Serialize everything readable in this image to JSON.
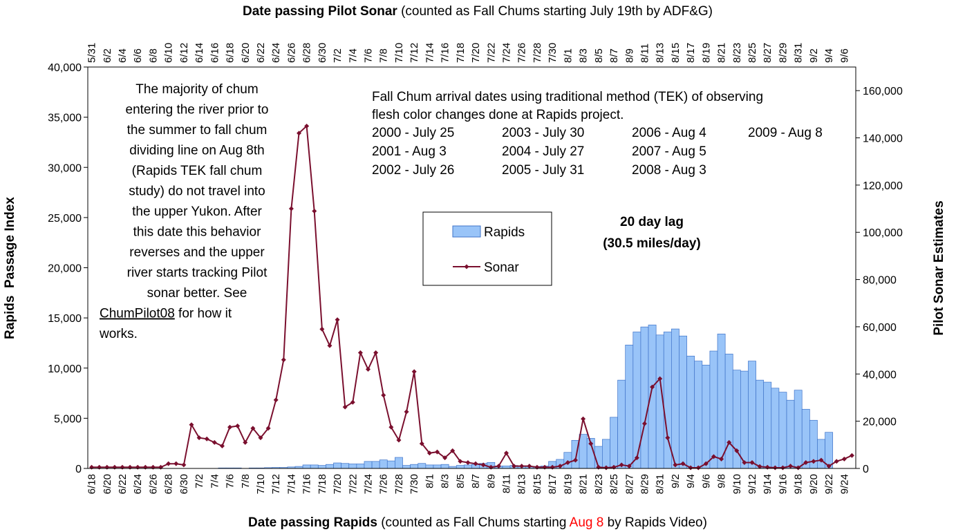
{
  "chart_data": {
    "type": "bar-line",
    "top_title": [
      {
        "text": "Date passing Pilot Sonar",
        "bold": true
      },
      {
        "text": " (counted as Fall Chums starting July 19th by ADF&G)"
      }
    ],
    "bottom_title": [
      {
        "text": "Date passing Rapids",
        "bold": true
      },
      {
        "text": " (counted as Fall Chums starting "
      },
      {
        "text": "Aug 8",
        "color": "#ff0000"
      },
      {
        "text": " by Rapids Video)"
      }
    ],
    "ylabel": "Rapids  Passage Index",
    "y2label": "Pilot Sonar Estimates",
    "categories": [
      "6/18",
      null,
      "6/20",
      null,
      "6/22",
      null,
      "6/24",
      null,
      "6/26",
      null,
      "6/28",
      null,
      "6/30",
      null,
      "7/2",
      null,
      "7/4",
      null,
      "7/6",
      null,
      "7/8",
      null,
      "7/10",
      null,
      "7/12",
      null,
      "7/14",
      null,
      "7/16",
      null,
      "7/18",
      null,
      "7/20",
      null,
      "7/22",
      null,
      "7/24",
      null,
      "7/26",
      null,
      "7/28",
      null,
      "7/30",
      null,
      "8/1",
      null,
      "8/3",
      null,
      "8/5",
      null,
      "8/7",
      null,
      "8/9",
      null,
      "8/11",
      null,
      "8/13",
      null,
      "8/15",
      null,
      "8/17",
      null,
      "8/19",
      null,
      "8/21",
      null,
      "8/23",
      null,
      "8/25",
      null,
      "8/27",
      null,
      "8/29",
      null,
      "8/31",
      null,
      "9/2",
      null,
      "9/4",
      null,
      "9/6",
      null,
      "9/8",
      null,
      "9/10",
      null,
      "9/12",
      null,
      "9/14",
      null,
      "9/16",
      null,
      "9/18",
      null,
      "9/20",
      null,
      "9/22",
      null,
      "9/24",
      null
    ],
    "top_categories": [
      "5/31",
      null,
      "6/2",
      null,
      "6/4",
      null,
      "6/6",
      null,
      "6/8",
      null,
      "6/10",
      null,
      "6/12",
      null,
      "6/14",
      null,
      "6/16",
      null,
      "6/18",
      null,
      "6/20",
      null,
      "6/22",
      null,
      "6/24",
      null,
      "6/26",
      null,
      "6/28",
      null,
      "6/30",
      null,
      "7/2",
      null,
      "7/4",
      null,
      "7/6",
      null,
      "7/8",
      null,
      "7/10",
      null,
      "7/12",
      null,
      "7/14",
      null,
      "7/16",
      null,
      "7/18",
      null,
      "7/20",
      null,
      "7/22",
      null,
      "7/24",
      null,
      "7/26",
      null,
      "7/28",
      null,
      "7/30",
      null,
      "8/1",
      null,
      "8/3",
      null,
      "8/5",
      null,
      "8/7",
      null,
      "8/9",
      null,
      "8/11",
      null,
      "8/13",
      null,
      "8/15",
      null,
      "8/17",
      null,
      "8/19",
      null,
      "8/21",
      null,
      "8/23",
      null,
      "8/25",
      null,
      "8/27",
      null,
      "8/29",
      null,
      "8/31",
      null,
      "9/2",
      null,
      "9/4",
      null,
      "9/6",
      null
    ],
    "series": [
      {
        "name": "Rapids",
        "type": "bar",
        "color": "#99c4f8",
        "edge": "#3f73c8",
        "values": [
          0,
          0,
          0,
          0,
          0,
          0,
          0,
          0,
          0,
          0,
          0,
          0,
          0,
          0,
          0,
          0,
          0,
          50,
          50,
          50,
          0,
          50,
          50,
          80,
          100,
          100,
          150,
          200,
          350,
          350,
          300,
          400,
          550,
          500,
          450,
          450,
          700,
          700,
          850,
          750,
          1100,
          300,
          400,
          500,
          350,
          350,
          400,
          200,
          300,
          350,
          400,
          500,
          600,
          250,
          250,
          300,
          200,
          200,
          200,
          250,
          700,
          900,
          1600,
          2800,
          3400,
          3000,
          2200,
          2900,
          5100,
          8800,
          12300,
          13600,
          14100,
          14300,
          13300,
          13600,
          13900,
          13200,
          11200,
          10700,
          10300,
          11700,
          13400,
          11400,
          9800,
          9700,
          10700,
          8800,
          8600,
          8000,
          7600,
          6800,
          7800,
          5900,
          4800,
          2900,
          3600,
          0,
          0,
          0
        ]
      },
      {
        "name": "Sonar",
        "type": "line",
        "axis": "y2",
        "color": "#7a0f2e",
        "values": [
          500,
          500,
          500,
          500,
          500,
          500,
          500,
          500,
          500,
          500,
          2000,
          2000,
          1500,
          18500,
          13000,
          12500,
          11000,
          9500,
          17500,
          18000,
          11000,
          17000,
          13000,
          17000,
          29000,
          46000,
          110000,
          142000,
          145000,
          109000,
          59000,
          52000,
          63000,
          26000,
          28000,
          49000,
          42000,
          49000,
          31000,
          17500,
          12000,
          24000,
          41000,
          10500,
          6500,
          7000,
          4500,
          7500,
          3000,
          2500,
          2000,
          1500,
          500,
          1000,
          6500,
          1000,
          1000,
          1000,
          500,
          500,
          500,
          1000,
          2500,
          3500,
          21000,
          10500,
          500,
          300,
          500,
          1500,
          1000,
          4500,
          19000,
          34500,
          38000,
          13000,
          1500,
          2000,
          300,
          300,
          2000,
          5000,
          4000,
          11000,
          7500,
          2500,
          2500,
          800,
          500,
          300,
          300,
          1000,
          300,
          2500,
          3000,
          3500,
          1000,
          3000,
          4000,
          5500
        ]
      }
    ],
    "ylim": [
      0,
      40000
    ],
    "yticks": [
      0,
      {
        "value": 5000,
        "label": "5,000"
      },
      {
        "value": 10000,
        "label": "10,000"
      },
      {
        "value": 15000,
        "label": "15,000"
      },
      {
        "value": 20000,
        "label": "20,000"
      },
      {
        "value": 25000,
        "label": "25,000"
      },
      {
        "value": 30000,
        "label": "30,000"
      },
      {
        "value": 35000,
        "label": "35,000"
      },
      {
        "value": 40000,
        "label": "40,000"
      }
    ],
    "y2lim": [
      0,
      170000
    ],
    "y2ticks": [
      0,
      {
        "value": 20000,
        "label": "20,000"
      },
      {
        "value": 40000,
        "label": "40,000"
      },
      {
        "value": 60000,
        "label": "60,000"
      },
      {
        "value": 80000,
        "label": "80,000"
      },
      {
        "value": 100000,
        "label": "100,000"
      },
      {
        "value": 120000,
        "label": "120,000"
      },
      {
        "value": 140000,
        "label": "140,000"
      },
      {
        "value": 160000,
        "label": "160,000"
      }
    ],
    "grid": false,
    "note": {
      "lines": [
        "The majority of chum",
        "entering the river prior to",
        "the summer to fall chum",
        "dividing line on Aug 8th",
        "(Rapids TEK fall chum",
        "study) do not travel into",
        "the upper Yukon. After",
        "this date this behavior",
        "reverses and the upper",
        "river starts tracking Pilot",
        "sonar better. See"
      ],
      "link": "ChumPilot08",
      "after_link": " for how it",
      "last": "works."
    },
    "tek": {
      "heading": [
        "Fall Chum arrival dates using traditional method (TEK) of observing",
        "flesh color changes done at Rapids project."
      ],
      "rows": [
        [
          "2000 - July 25",
          "2003 - July 30",
          "2006 - Aug 4",
          "2009 - Aug 8"
        ],
        [
          "2001 - Aug 3",
          "2004 - July 27",
          "2007 - Aug 5"
        ],
        [
          "2002 - July 26",
          "2005 - July 31",
          "2008 - Aug 3"
        ]
      ]
    },
    "lag": [
      "20 day lag",
      "(30.5 miles/day)"
    ]
  }
}
